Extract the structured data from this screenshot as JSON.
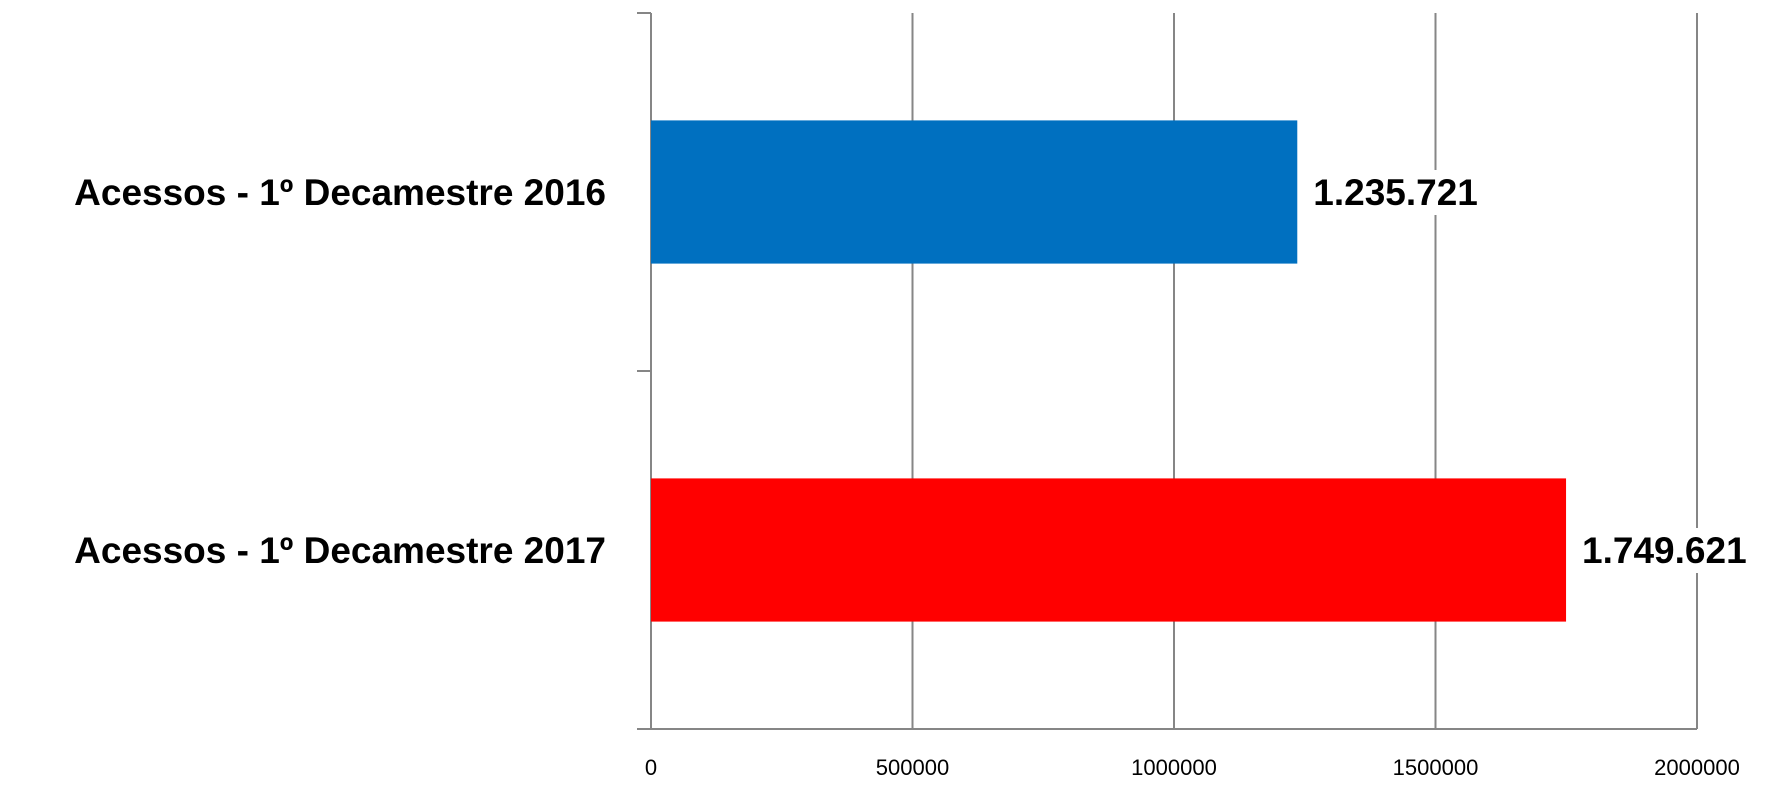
{
  "chart_data": {
    "type": "bar",
    "orientation": "horizontal",
    "categories": [
      "Acessos - 1º Decamestre 2016",
      "Acessos - 1º Decamestre 2017"
    ],
    "values": [
      1235721,
      1749621
    ],
    "data_labels": [
      "1.235.721",
      "1.749.621"
    ],
    "colors": [
      "#0070C0",
      "#FF0000"
    ],
    "title": "",
    "xlabel": "",
    "ylabel": "",
    "xlim": [
      0,
      2000000
    ],
    "x_ticks": [
      0,
      500000,
      1000000,
      1500000,
      2000000
    ],
    "x_tick_labels": [
      "0",
      "500000",
      "1000000",
      "1500000",
      "2000000"
    ],
    "grid": "vertical-major",
    "legend": "none"
  }
}
